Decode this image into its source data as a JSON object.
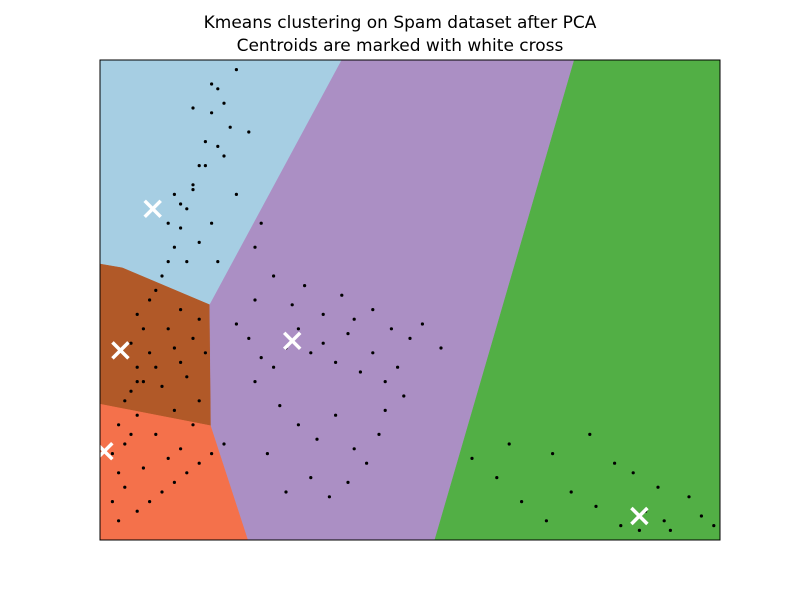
{
  "chart_data": {
    "type": "scatter",
    "title_lines": [
      "Kmeans clustering on Spam dataset after PCA",
      "Centroids are marked with white cross"
    ],
    "xlabel": "",
    "ylabel": "",
    "xlim": [
      0,
      100
    ],
    "ylim": [
      0,
      100
    ],
    "axis_ticks": "none",
    "grid": false,
    "legend": "none",
    "regions": [
      {
        "cluster": 1,
        "color": "#a6cee3",
        "polygon": [
          [
            0,
            100
          ],
          [
            39,
            100
          ],
          [
            17.7,
            49
          ],
          [
            3.6,
            56.7
          ],
          [
            0,
            57.5
          ]
        ]
      },
      {
        "cluster": 2,
        "color": "#b15928",
        "polygon": [
          [
            0,
            57.5
          ],
          [
            3.6,
            56.7
          ],
          [
            17.7,
            49
          ],
          [
            17.9,
            23.8
          ],
          [
            0,
            28.3
          ]
        ]
      },
      {
        "cluster": 3,
        "color": "#f4714b",
        "polygon": [
          [
            0,
            28.3
          ],
          [
            17.9,
            23.8
          ],
          [
            23.9,
            0
          ],
          [
            0,
            0
          ]
        ]
      },
      {
        "cluster": 4,
        "color": "#ab8fc4",
        "polygon": [
          [
            39,
            100
          ],
          [
            76.5,
            100
          ],
          [
            54,
            0
          ],
          [
            23.9,
            0
          ],
          [
            17.9,
            23.8
          ],
          [
            17.7,
            49
          ]
        ]
      },
      {
        "cluster": 5,
        "color": "#52af45",
        "polygon": [
          [
            76.5,
            100
          ],
          [
            100,
            100
          ],
          [
            100,
            0
          ],
          [
            54,
            0
          ]
        ]
      }
    ],
    "point_color": "#000000",
    "points": [
      [
        2,
        8
      ],
      [
        4,
        11
      ],
      [
        3,
        14
      ],
      [
        2,
        18
      ],
      [
        4,
        20
      ],
      [
        5,
        22
      ],
      [
        3,
        24
      ],
      [
        6,
        26
      ],
      [
        4,
        29
      ],
      [
        5,
        31
      ],
      [
        7,
        33
      ],
      [
        6,
        36
      ],
      [
        8,
        39
      ],
      [
        5,
        41
      ],
      [
        7,
        44
      ],
      [
        6,
        47
      ],
      [
        8,
        50
      ],
      [
        9,
        52
      ],
      [
        10,
        55
      ],
      [
        11,
        58
      ],
      [
        12,
        61
      ],
      [
        13,
        65
      ],
      [
        14,
        69
      ],
      [
        15,
        73
      ],
      [
        16,
        78
      ],
      [
        17,
        83
      ],
      [
        18,
        89
      ],
      [
        19,
        94
      ],
      [
        3,
        4
      ],
      [
        6,
        6
      ],
      [
        8,
        8
      ],
      [
        10,
        10
      ],
      [
        12,
        12
      ],
      [
        14,
        14
      ],
      [
        16,
        16
      ],
      [
        18,
        18
      ],
      [
        20,
        20
      ],
      [
        7,
        15
      ],
      [
        11,
        17
      ],
      [
        13,
        19
      ],
      [
        9,
        22
      ],
      [
        15,
        24
      ],
      [
        12,
        27
      ],
      [
        16,
        29
      ],
      [
        10,
        32
      ],
      [
        14,
        34
      ],
      [
        13,
        37
      ],
      [
        17,
        39
      ],
      [
        15,
        42
      ],
      [
        11,
        44
      ],
      [
        16,
        46
      ],
      [
        13,
        48
      ],
      [
        9,
        36
      ],
      [
        6,
        33
      ],
      [
        12,
        40
      ],
      [
        11,
        66
      ],
      [
        13,
        70
      ],
      [
        15,
        74
      ],
      [
        17,
        78
      ],
      [
        19,
        82
      ],
      [
        21,
        86
      ],
      [
        16,
        62
      ],
      [
        18,
        66
      ],
      [
        14,
        58
      ],
      [
        22,
        72
      ],
      [
        24,
        85
      ],
      [
        20,
        80
      ],
      [
        25,
        61
      ],
      [
        19,
        58
      ],
      [
        12,
        72
      ],
      [
        15,
        90
      ],
      [
        18,
        95
      ],
      [
        20,
        91
      ],
      [
        22,
        98
      ],
      [
        26,
        66
      ],
      [
        22,
        45
      ],
      [
        24,
        42
      ],
      [
        26,
        38
      ],
      [
        28,
        36
      ],
      [
        30,
        40
      ],
      [
        32,
        44
      ],
      [
        34,
        39
      ],
      [
        36,
        41
      ],
      [
        38,
        37
      ],
      [
        40,
        43
      ],
      [
        42,
        35
      ],
      [
        44,
        39
      ],
      [
        46,
        33
      ],
      [
        48,
        36
      ],
      [
        25,
        50
      ],
      [
        28,
        55
      ],
      [
        31,
        49
      ],
      [
        33,
        53
      ],
      [
        36,
        47
      ],
      [
        39,
        51
      ],
      [
        41,
        46
      ],
      [
        44,
        48
      ],
      [
        47,
        44
      ],
      [
        50,
        42
      ],
      [
        29,
        28
      ],
      [
        32,
        24
      ],
      [
        35,
        21
      ],
      [
        38,
        26
      ],
      [
        41,
        19
      ],
      [
        43,
        16
      ],
      [
        45,
        22
      ],
      [
        27,
        18
      ],
      [
        30,
        10
      ],
      [
        34,
        13
      ],
      [
        37,
        9
      ],
      [
        40,
        12
      ],
      [
        25,
        33
      ],
      [
        46,
        27
      ],
      [
        49,
        30
      ],
      [
        52,
        45
      ],
      [
        55,
        40
      ],
      [
        60,
        17
      ],
      [
        64,
        13
      ],
      [
        68,
        8
      ],
      [
        72,
        4
      ],
      [
        76,
        10
      ],
      [
        80,
        7
      ],
      [
        84,
        3
      ],
      [
        86,
        14
      ],
      [
        88,
        6
      ],
      [
        90,
        11
      ],
      [
        92,
        2
      ],
      [
        95,
        9
      ],
      [
        97,
        5
      ],
      [
        99,
        3
      ],
      [
        66,
        20
      ],
      [
        73,
        18
      ],
      [
        79,
        22
      ],
      [
        83,
        16
      ],
      [
        87,
        2
      ],
      [
        91,
        4
      ]
    ],
    "centroids_color": "#ffffff",
    "centroids": [
      [
        8.5,
        69
      ],
      [
        3.3,
        39.5
      ],
      [
        0.7,
        18.5
      ],
      [
        31,
        41.5
      ],
      [
        87,
        5
      ]
    ]
  }
}
